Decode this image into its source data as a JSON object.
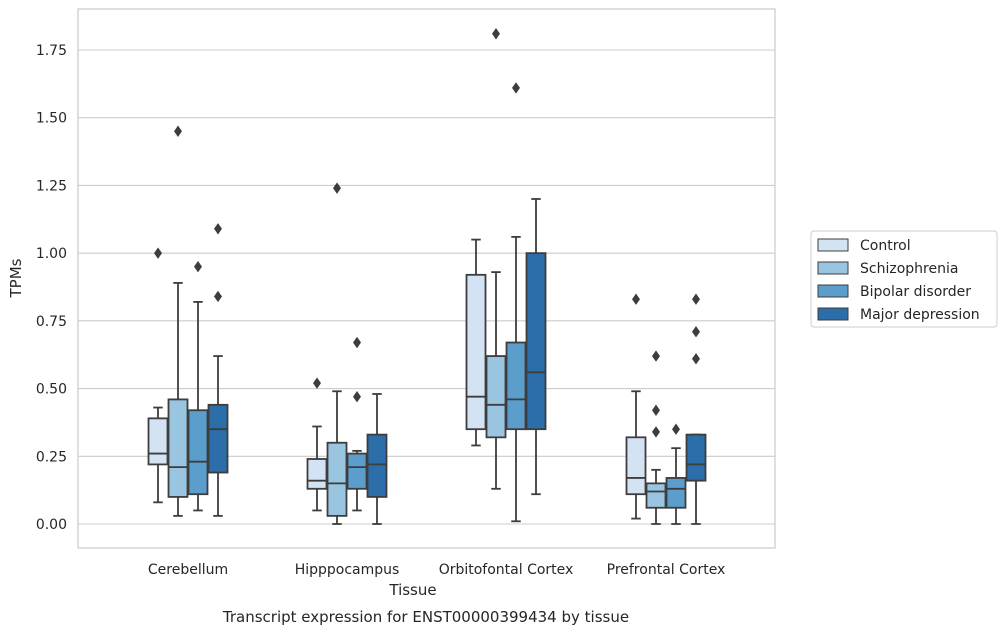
{
  "chart_data": {
    "type": "box",
    "title": "",
    "caption": "Transcript expression for ENST00000399434 by tissue",
    "xlabel": "Tissue",
    "ylabel": "TPMs",
    "ylim": [
      -0.09,
      1.9
    ],
    "yticks": [
      "0.00",
      "0.25",
      "0.50",
      "0.75",
      "1.00",
      "1.25",
      "1.50",
      "1.75"
    ],
    "ytick_values": [
      0.0,
      0.25,
      0.5,
      0.75,
      1.0,
      1.25,
      1.5,
      1.75
    ],
    "grid": "horizontal",
    "legend_position": "right",
    "categories": [
      "Cerebellum",
      "Hipppocampus",
      "Orbitofontal Cortex",
      "Prefrontal Cortex"
    ],
    "series": [
      {
        "name": "Control",
        "color": "#d4e3f3",
        "boxes": [
          {
            "whisker_low": 0.08,
            "q1": 0.22,
            "median": 0.26,
            "q3": 0.39,
            "whisker_high": 0.43,
            "outliers": [
              1.0
            ]
          },
          {
            "whisker_low": 0.05,
            "q1": 0.13,
            "median": 0.16,
            "q3": 0.24,
            "whisker_high": 0.36,
            "outliers": [
              0.52
            ]
          },
          {
            "whisker_low": 0.29,
            "q1": 0.35,
            "median": 0.47,
            "q3": 0.92,
            "whisker_high": 1.05,
            "outliers": []
          },
          {
            "whisker_low": 0.02,
            "q1": 0.11,
            "median": 0.17,
            "q3": 0.32,
            "whisker_high": 0.49,
            "outliers": [
              0.83
            ]
          }
        ]
      },
      {
        "name": "Schizophrenia",
        "color": "#9ac5e0",
        "boxes": [
          {
            "whisker_low": 0.03,
            "q1": 0.1,
            "median": 0.21,
            "q3": 0.46,
            "whisker_high": 0.89,
            "outliers": [
              1.45
            ]
          },
          {
            "whisker_low": 0.0,
            "q1": 0.03,
            "median": 0.15,
            "q3": 0.3,
            "whisker_high": 0.49,
            "outliers": [
              1.24
            ]
          },
          {
            "whisker_low": 0.13,
            "q1": 0.32,
            "median": 0.44,
            "q3": 0.62,
            "whisker_high": 0.93,
            "outliers": [
              1.81
            ]
          },
          {
            "whisker_low": 0.0,
            "q1": 0.06,
            "median": 0.12,
            "q3": 0.15,
            "whisker_high": 0.2,
            "outliers": [
              0.34,
              0.42,
              0.62
            ]
          }
        ]
      },
      {
        "name": "Bipolar disorder",
        "color": "#5b9dcb",
        "boxes": [
          {
            "whisker_low": 0.05,
            "q1": 0.11,
            "median": 0.23,
            "q3": 0.42,
            "whisker_high": 0.82,
            "outliers": [
              0.95
            ]
          },
          {
            "whisker_low": 0.05,
            "q1": 0.13,
            "median": 0.21,
            "q3": 0.26,
            "whisker_high": 0.27,
            "outliers": [
              0.47,
              0.67
            ]
          },
          {
            "whisker_low": 0.01,
            "q1": 0.35,
            "median": 0.46,
            "q3": 0.67,
            "whisker_high": 1.06,
            "outliers": [
              1.61
            ]
          },
          {
            "whisker_low": 0.0,
            "q1": 0.06,
            "median": 0.13,
            "q3": 0.17,
            "whisker_high": 0.28,
            "outliers": [
              0.35
            ]
          }
        ]
      },
      {
        "name": "Major depression",
        "color": "#2b6ea9",
        "boxes": [
          {
            "whisker_low": 0.03,
            "q1": 0.19,
            "median": 0.35,
            "q3": 0.44,
            "whisker_high": 0.62,
            "outliers": [
              0.84,
              1.09
            ]
          },
          {
            "whisker_low": 0.0,
            "q1": 0.1,
            "median": 0.22,
            "q3": 0.33,
            "whisker_high": 0.48,
            "outliers": []
          },
          {
            "whisker_low": 0.11,
            "q1": 0.35,
            "median": 0.56,
            "q3": 1.0,
            "whisker_high": 1.2,
            "outliers": []
          },
          {
            "whisker_low": 0.0,
            "q1": 0.16,
            "median": 0.22,
            "q3": 0.33,
            "whisker_high": 0.33,
            "outliers": [
              0.61,
              0.71,
              0.83
            ]
          }
        ]
      }
    ]
  }
}
